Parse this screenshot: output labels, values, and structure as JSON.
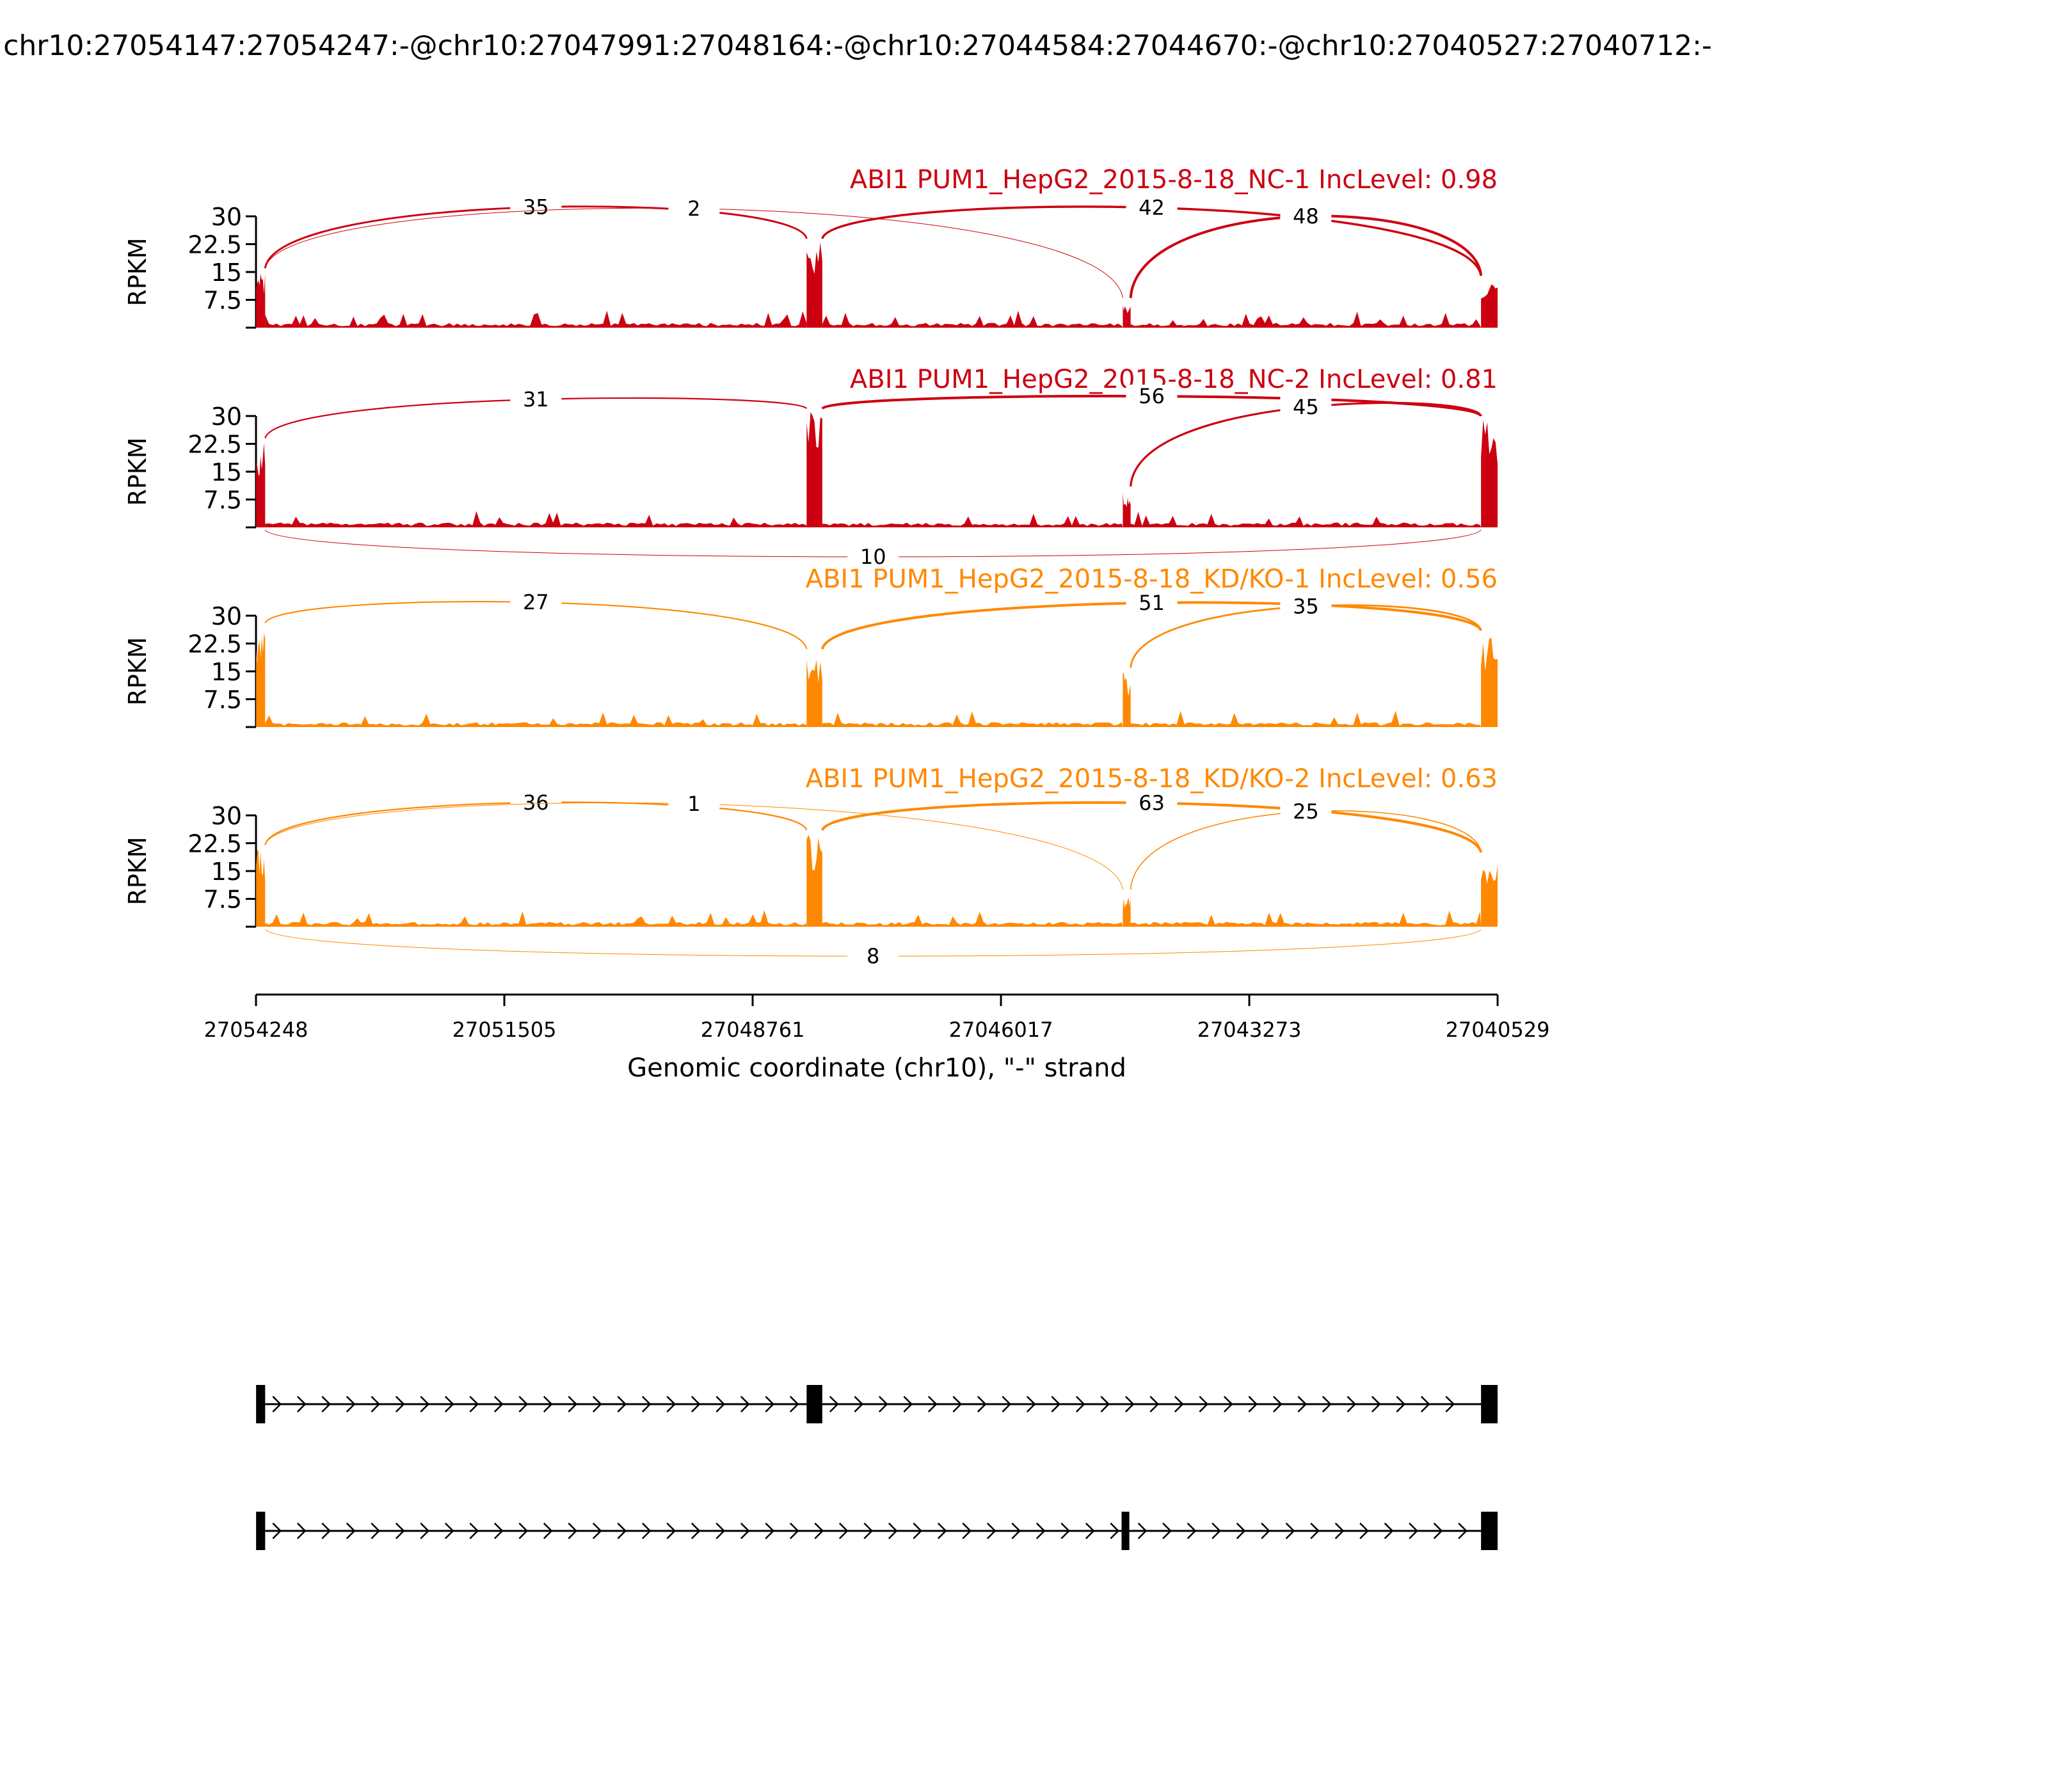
{
  "chart_data": {
    "type": "sashimi",
    "title": "chr10:27054147:27054247:-@chr10:27047991:27048164:-@chr10:27044584:27044670:-@chr10:27040527:27040712:-",
    "ylabel": "RPKM",
    "xlabel": "Genomic coordinate (chr10), \"-\" strand",
    "x_ticks": [
      "27054248",
      "27051505",
      "27048761",
      "27046017",
      "27043273",
      "27040529"
    ],
    "x_range": [
      27054248,
      27040529
    ],
    "y_ticks": [
      "7.5",
      "15",
      "22.5",
      "30"
    ],
    "ylim": [
      0,
      30
    ],
    "exons": [
      {
        "name": "exon1",
        "start": 27054247,
        "end": 27054147
      },
      {
        "name": "exon2",
        "start": 27048164,
        "end": 27047991
      },
      {
        "name": "exon3",
        "start": 27044670,
        "end": 27044584
      },
      {
        "name": "exon4",
        "start": 27040712,
        "end": 27040529
      }
    ],
    "samples": [
      {
        "label": "ABI1 PUM1_HepG2_2015-8-18_NC-1 IncLevel: 0.98",
        "color": "#cc0011",
        "junctions": [
          {
            "from": "exon1",
            "to": "exon2",
            "count": "35",
            "side": "above"
          },
          {
            "from": "exon1",
            "to": "exon3",
            "count": "2",
            "side": "above"
          },
          {
            "from": "exon2",
            "to": "exon4",
            "count": "42",
            "side": "above"
          },
          {
            "from": "exon3",
            "to": "exon4",
            "count": "48",
            "side": "above"
          }
        ]
      },
      {
        "label": "ABI1 PUM1_HepG2_2015-8-18_NC-2 IncLevel: 0.81",
        "color": "#cc0011",
        "junctions": [
          {
            "from": "exon1",
            "to": "exon2",
            "count": "31",
            "side": "above"
          },
          {
            "from": "exon2",
            "to": "exon4",
            "count": "56",
            "side": "above"
          },
          {
            "from": "exon3",
            "to": "exon4",
            "count": "45",
            "side": "above"
          },
          {
            "from": "exon1",
            "to": "exon4",
            "count": "10",
            "side": "below"
          }
        ]
      },
      {
        "label": "ABI1 PUM1_HepG2_2015-8-18_KD/KO-1 IncLevel: 0.56",
        "color": "#ff8800",
        "junctions": [
          {
            "from": "exon1",
            "to": "exon2",
            "count": "27",
            "side": "above"
          },
          {
            "from": "exon2",
            "to": "exon4",
            "count": "51",
            "side": "above"
          },
          {
            "from": "exon3",
            "to": "exon4",
            "count": "35",
            "side": "above"
          }
        ]
      },
      {
        "label": "ABI1 PUM1_HepG2_2015-8-18_KD/KO-2 IncLevel: 0.63",
        "color": "#ff8800",
        "junctions": [
          {
            "from": "exon1",
            "to": "exon2",
            "count": "36",
            "side": "above"
          },
          {
            "from": "exon1",
            "to": "exon3",
            "count": "1",
            "side": "above"
          },
          {
            "from": "exon2",
            "to": "exon4",
            "count": "63",
            "side": "above"
          },
          {
            "from": "exon3",
            "to": "exon4",
            "count": "25",
            "side": "above"
          },
          {
            "from": "exon1",
            "to": "exon4",
            "count": "8",
            "side": "below"
          }
        ]
      }
    ],
    "isoforms": [
      {
        "name": "isoform-1",
        "exons": [
          "exon1",
          "exon2",
          "exon4"
        ]
      },
      {
        "name": "isoform-2",
        "exons": [
          "exon1",
          "exon3",
          "exon4"
        ]
      }
    ]
  }
}
